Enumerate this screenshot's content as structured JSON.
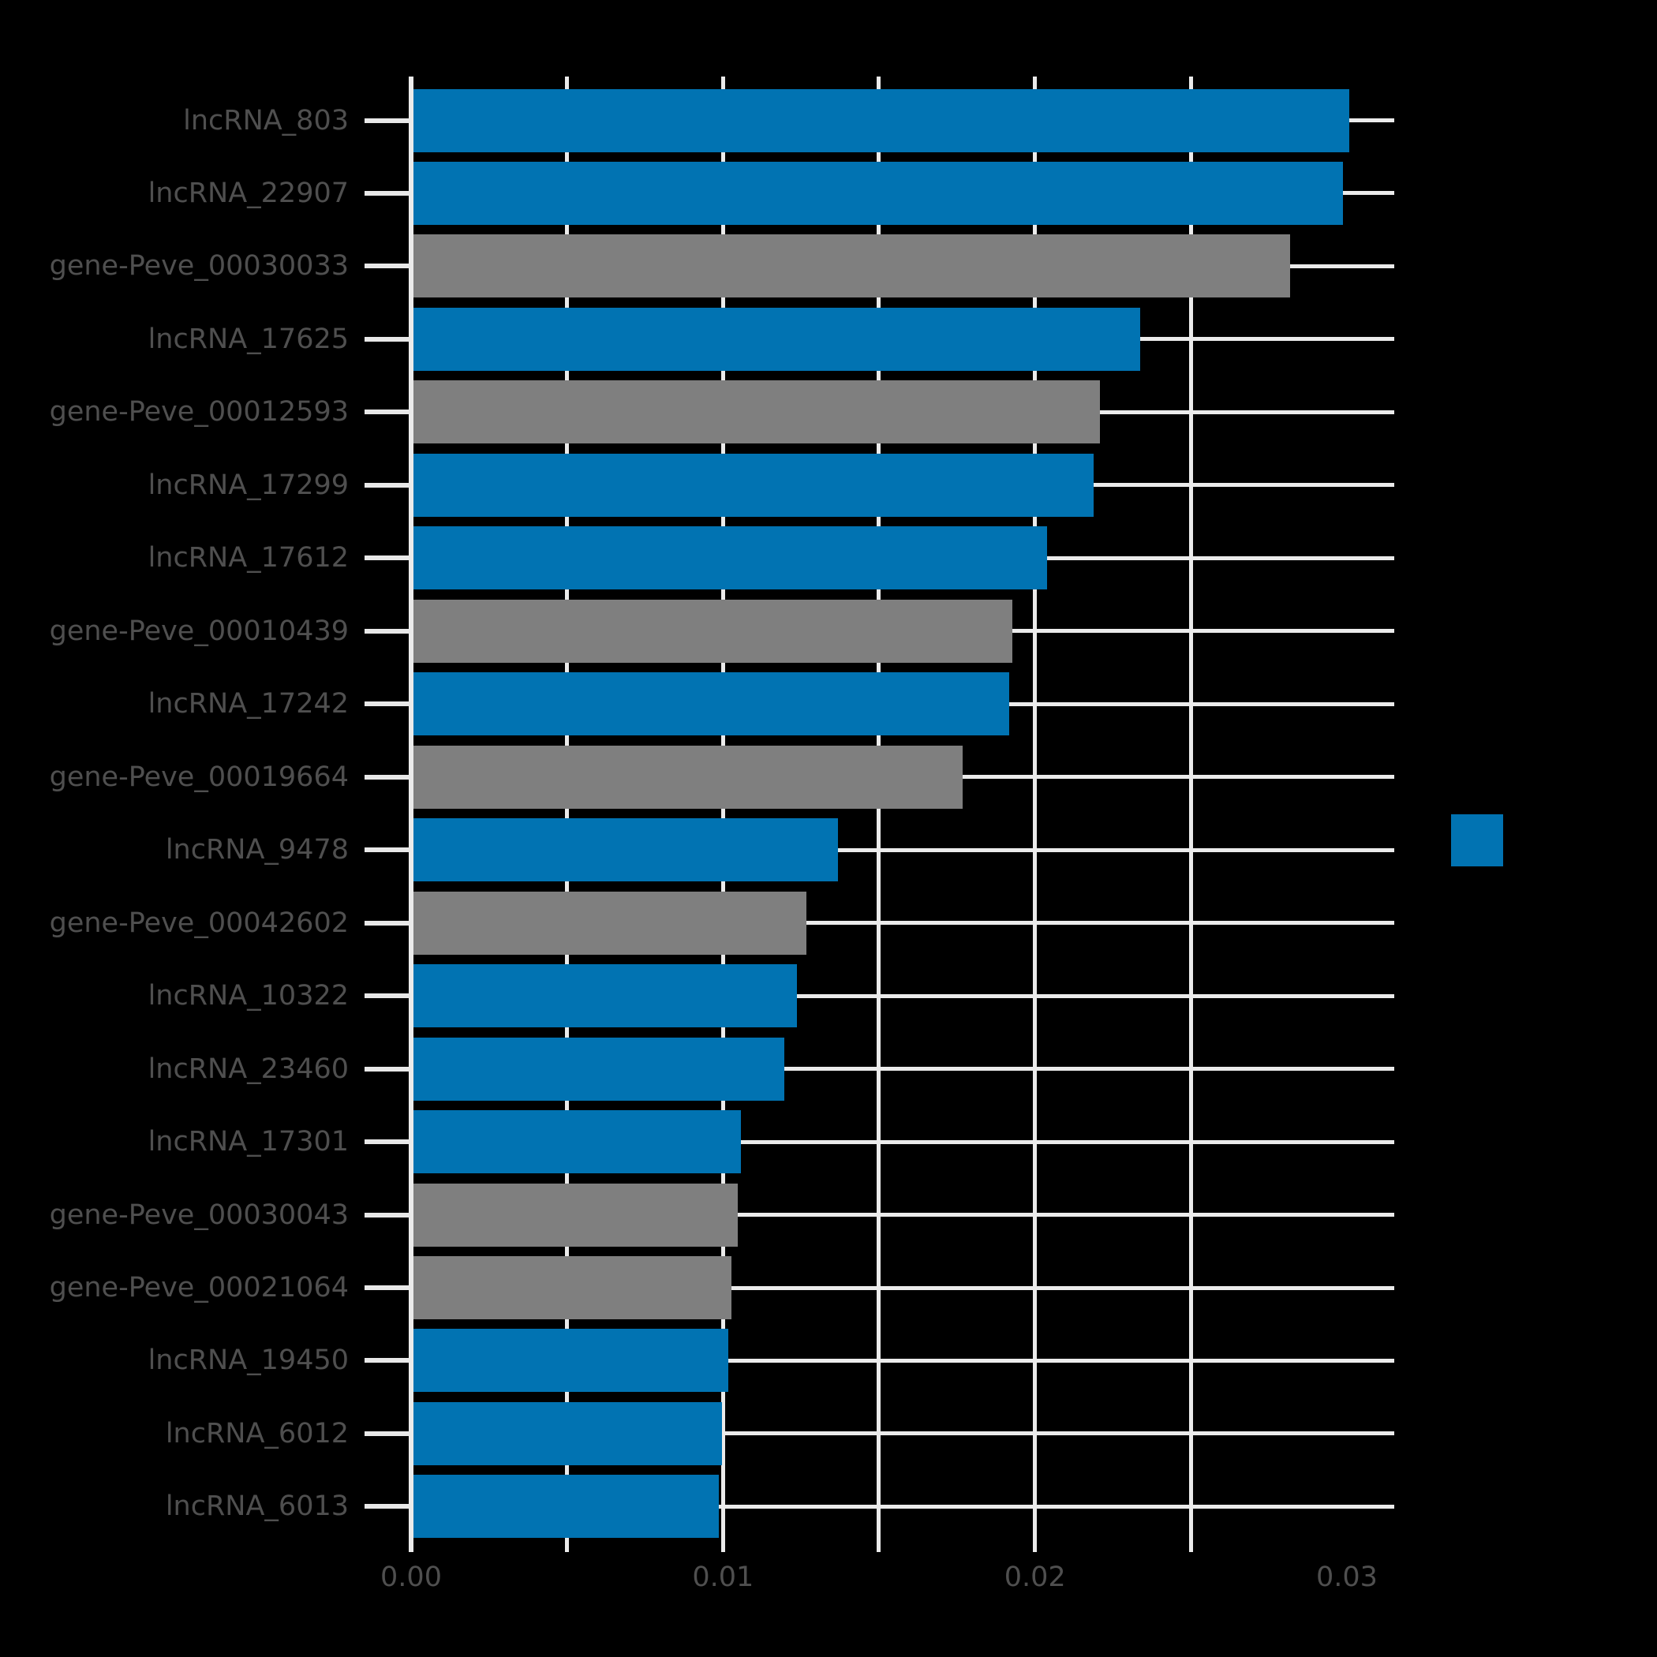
{
  "figure": {
    "background": "#000000",
    "grid_color": "#ebebeb",
    "tick_color": "#e8e8e8",
    "label_color": "#4f4f4f"
  },
  "legend": {
    "swatch_color": "#0173b2"
  },
  "chart_data": {
    "type": "bar",
    "orientation": "horizontal",
    "title": "",
    "xlabel": "",
    "ylabel": "",
    "categories": [
      "lncRNA_803",
      "lncRNA_22907",
      "gene-Peve_00030033",
      "lncRNA_17625",
      "gene-Peve_00012593",
      "lncRNA_17299",
      "lncRNA_17612",
      "gene-Peve_00010439",
      "lncRNA_17242",
      "gene-Peve_00019664",
      "lncRNA_9478",
      "gene-Peve_00042602",
      "lncRNA_10322",
      "lncRNA_23460",
      "lncRNA_17301",
      "gene-Peve_00030043",
      "gene-Peve_00021064",
      "lncRNA_19450",
      "lncRNA_6012",
      "lncRNA_6013"
    ],
    "values": [
      0.03,
      0.0298,
      0.0281,
      0.0233,
      0.022,
      0.0218,
      0.0203,
      0.0192,
      0.0191,
      0.0176,
      0.0136,
      0.0126,
      0.0123,
      0.0119,
      0.0105,
      0.0104,
      0.0102,
      0.0101,
      0.0099,
      0.0098
    ],
    "groups": [
      "lncRNA",
      "lncRNA",
      "gene-Peve",
      "lncRNA",
      "gene-Peve",
      "lncRNA",
      "lncRNA",
      "gene-Peve",
      "lncRNA",
      "gene-Peve",
      "lncRNA",
      "gene-Peve",
      "lncRNA",
      "lncRNA",
      "lncRNA",
      "gene-Peve",
      "gene-Peve",
      "lncRNA",
      "lncRNA",
      "lncRNA"
    ],
    "series_colors": {
      "lncRNA": "#0173b2",
      "gene-Peve": "#7f7f7f"
    },
    "x_major_ticks": [
      0.0,
      0.01,
      0.02,
      0.03
    ],
    "x_tick_labels": [
      "0.00",
      "0.01",
      "0.02",
      "0.03"
    ],
    "x_minor_tick_step": 0.005,
    "xlim": [
      0.0,
      0.0315
    ],
    "grid": true,
    "legend_position": "right-center"
  }
}
